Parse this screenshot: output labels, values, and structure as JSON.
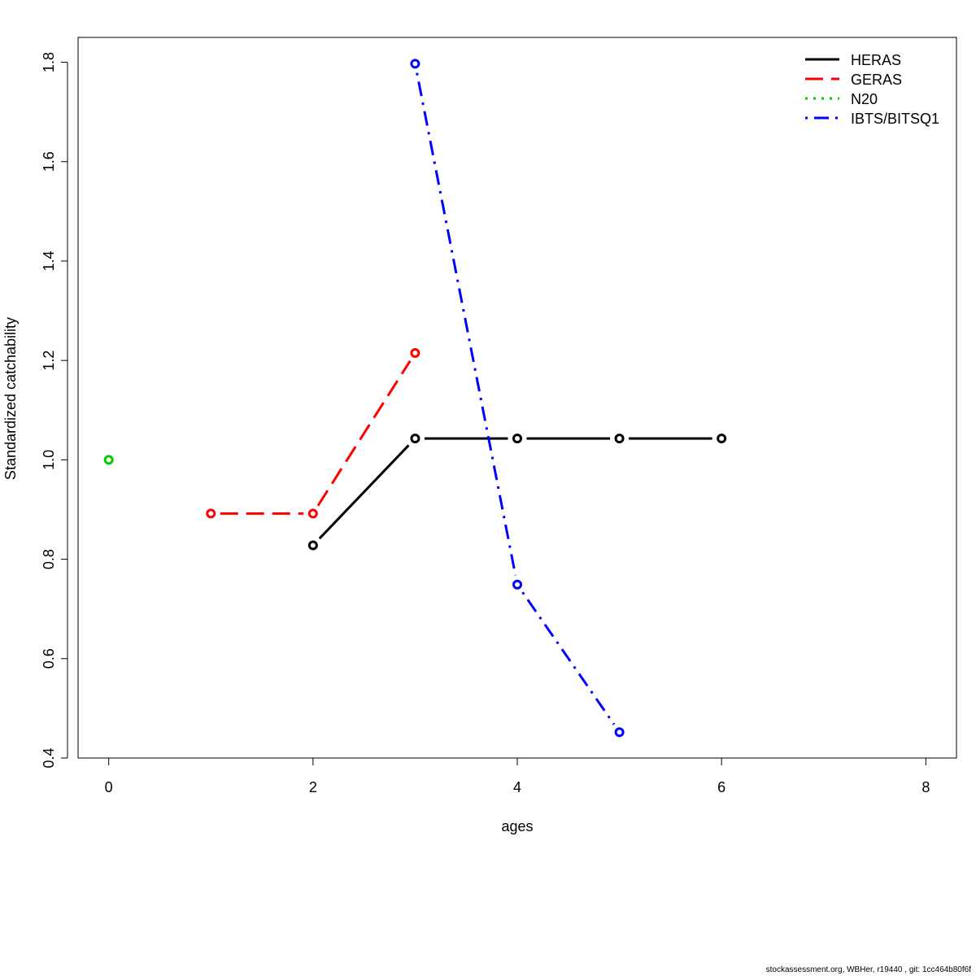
{
  "chart_data": {
    "type": "line",
    "xlabel": "ages",
    "ylabel": "Standardized catchability",
    "xlim": [
      -0.3,
      8.3
    ],
    "ylim": [
      0.4,
      1.85
    ],
    "x_ticks": [
      0,
      2,
      4,
      6,
      8
    ],
    "y_ticks": [
      0.4,
      0.6,
      0.8,
      1.0,
      1.2,
      1.4,
      1.6,
      1.8
    ],
    "x_tick_labels": [
      "0",
      "2",
      "4",
      "6",
      "8"
    ],
    "y_tick_labels": [
      "0.4",
      "0.6",
      "0.8",
      "1.0",
      "1.2",
      "1.4",
      "1.6",
      "1.8"
    ],
    "grid": false,
    "legend_position": "top-right",
    "series": [
      {
        "name": "HERAS",
        "color": "#000000",
        "dash": "solid",
        "x": [
          2,
          3,
          4,
          5,
          6
        ],
        "y": [
          0.828,
          1.043,
          1.043,
          1.043,
          1.043
        ]
      },
      {
        "name": "GERAS",
        "color": "#ff0000",
        "dash": "dashed",
        "x": [
          1,
          2,
          3
        ],
        "y": [
          0.892,
          0.892,
          1.215
        ]
      },
      {
        "name": "N20",
        "color": "#00cd00",
        "dash": "dotted",
        "x": [
          0
        ],
        "y": [
          1.0
        ]
      },
      {
        "name": "IBTS/BITSQ1",
        "color": "#0000ff",
        "dash": "dotdash",
        "x": [
          3,
          4,
          5
        ],
        "y": [
          1.797,
          0.749,
          0.452
        ]
      }
    ]
  },
  "footer": "stockassessment.org, WBHer, r19440 , git: 1cc464b80f6f"
}
